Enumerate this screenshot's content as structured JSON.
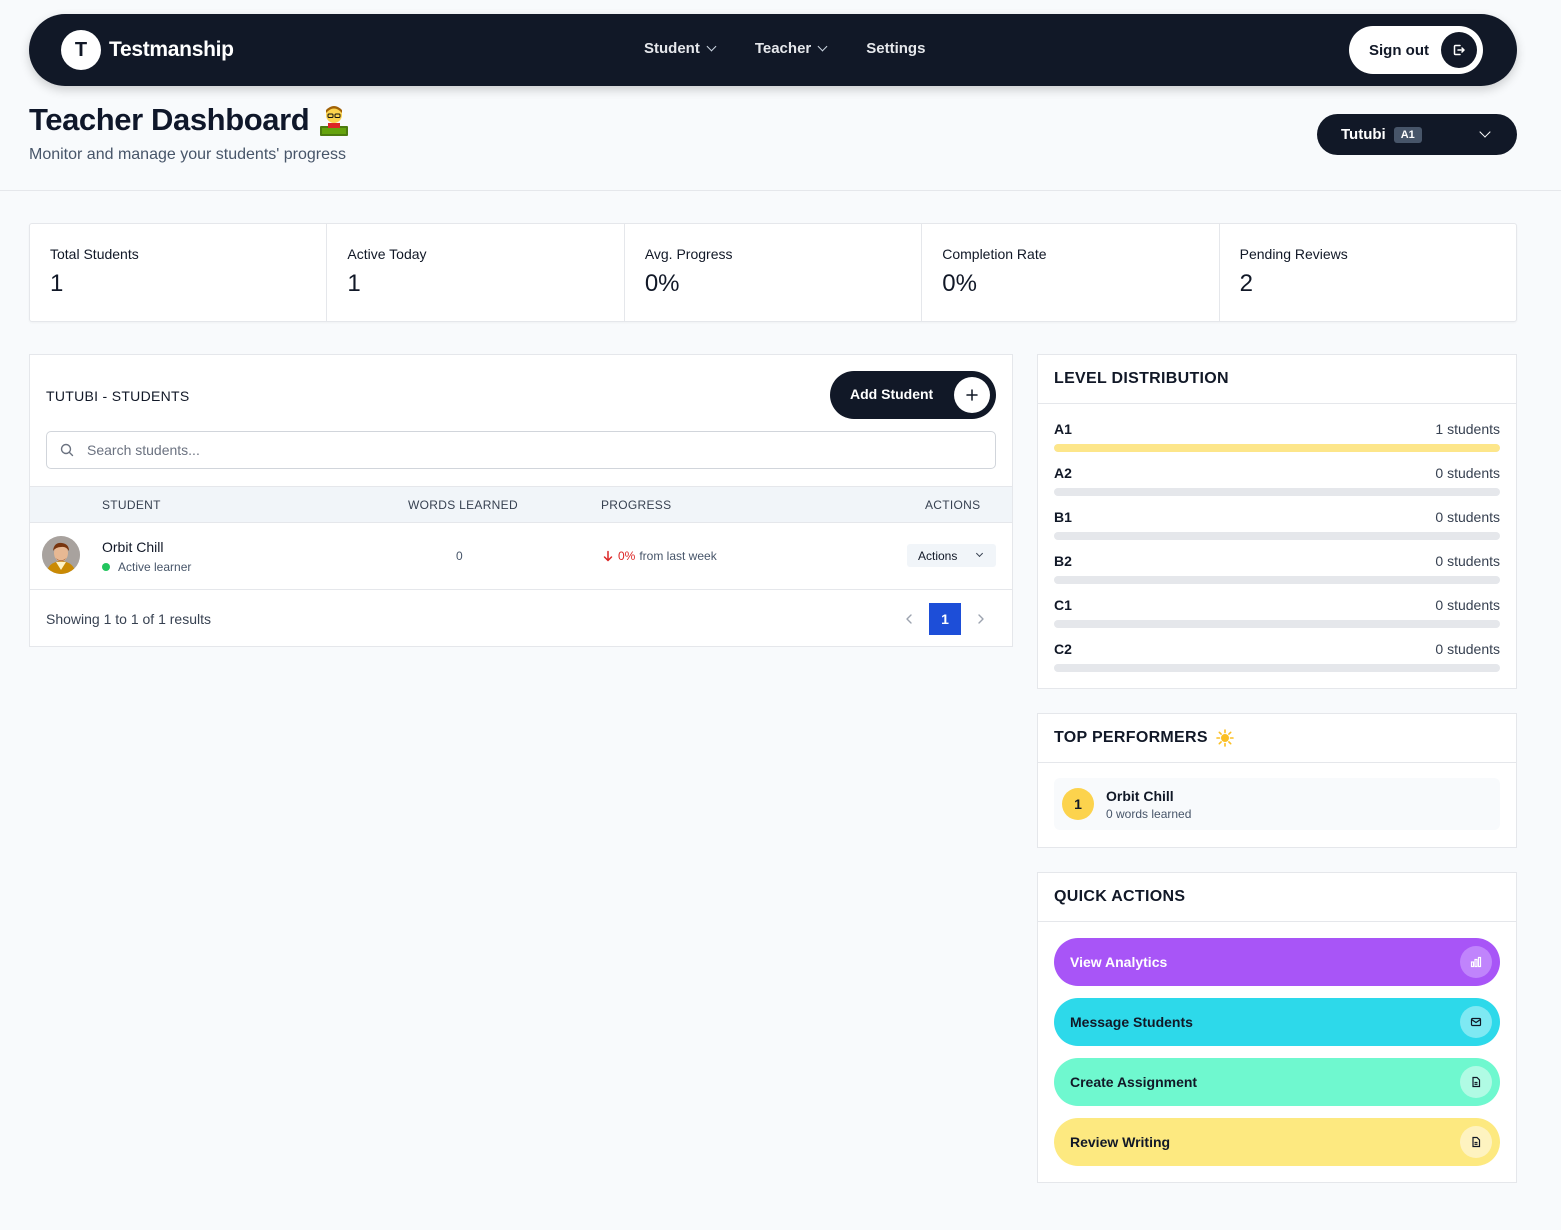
{
  "nav": {
    "brand_letter": "T",
    "brand_name": "Testmanship",
    "links": [
      {
        "label": "Student",
        "has_dropdown": true
      },
      {
        "label": "Teacher",
        "has_dropdown": true
      },
      {
        "label": "Settings",
        "has_dropdown": false
      }
    ],
    "signout_label": "Sign out",
    "signout_icon": "sign-out-icon"
  },
  "header": {
    "title": "Teacher Dashboard",
    "title_emoji": "teacher-emoji",
    "subtitle": "Monitor and manage your students' progress",
    "class_selector": {
      "name": "Tutubi",
      "badge": "A1"
    }
  },
  "stats": [
    {
      "label": "Total Students",
      "value": "1"
    },
    {
      "label": "Active Today",
      "value": "1"
    },
    {
      "label": "Avg. Progress",
      "value": "0%"
    },
    {
      "label": "Completion Rate",
      "value": "0%"
    },
    {
      "label": "Pending Reviews",
      "value": "2"
    }
  ],
  "students": {
    "title": "TUTUBI - STUDENTS",
    "add_label": "Add Student",
    "search_placeholder": "Search students...",
    "columns": [
      "STUDENT",
      "WORDS LEARNED",
      "PROGRESS",
      "ACTIONS"
    ],
    "rows": [
      {
        "name": "Orbit Chill",
        "status": "Active learner",
        "words": "0",
        "progress_value": "0%",
        "progress_suffix": "from last week",
        "actions_label": "Actions"
      }
    ],
    "showing": "Showing 1 to 1 of 1 results",
    "current_page": "1"
  },
  "level_distribution": {
    "title": "LEVEL DISTRIBUTION",
    "levels": [
      {
        "name": "A1",
        "count": "1 students",
        "fraction": 1
      },
      {
        "name": "A2",
        "count": "0 students",
        "fraction": 0
      },
      {
        "name": "B1",
        "count": "0 students",
        "fraction": 0
      },
      {
        "name": "B2",
        "count": "0 students",
        "fraction": 0
      },
      {
        "name": "C1",
        "count": "0 students",
        "fraction": 0
      },
      {
        "name": "C2",
        "count": "0 students",
        "fraction": 0
      }
    ]
  },
  "top_performers": {
    "title": "TOP PERFORMERS",
    "title_icon": "sun-icon",
    "items": [
      {
        "rank": "1",
        "name": "Orbit Chill",
        "subtitle": "0 words learned"
      }
    ]
  },
  "quick_actions": {
    "title": "QUICK ACTIONS",
    "items": [
      {
        "label": "View Analytics",
        "icon": "chart-icon",
        "bg": "#a855f7",
        "icon_bg": "#c084fc",
        "text_color": "#ffffff"
      },
      {
        "label": "Message Students",
        "icon": "mail-icon",
        "bg": "#2dd9ea",
        "icon_bg": "#7ee9f3",
        "text_color": "#111827"
      },
      {
        "label": "Create Assignment",
        "icon": "document-icon",
        "bg": "#6ff8cf",
        "icon_bg": "#b0fbe4",
        "text_color": "#111827"
      },
      {
        "label": "Review Writing",
        "icon": "document-icon",
        "bg": "#fde980",
        "icon_bg": "#fef3c0",
        "text_color": "#111827"
      }
    ]
  },
  "colors": {
    "nav_bg": "#111827",
    "accent_blue": "#1d4ed8",
    "level_fill": "#fde68a",
    "status_green": "#22c55e",
    "down_red": "#dc2626",
    "rank_gold": "#fcd34d"
  }
}
